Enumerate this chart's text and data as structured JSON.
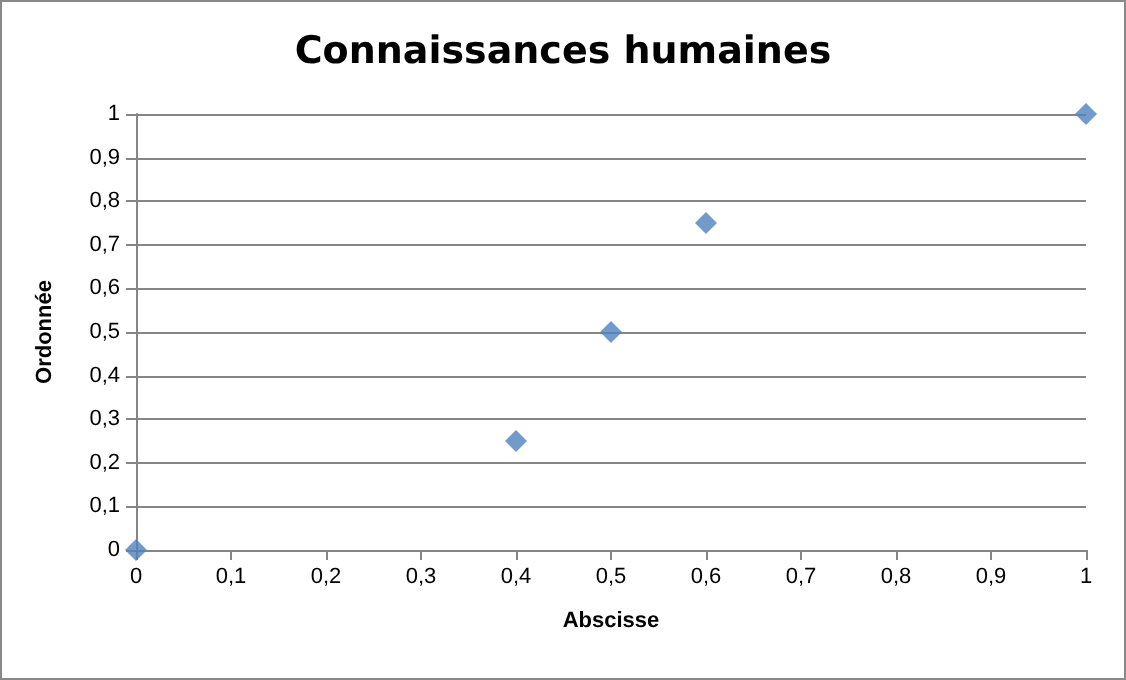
{
  "chart_data": {
    "type": "scatter",
    "title": "Connaissances humaines",
    "xlabel": "Abscisse",
    "ylabel": "Ordonnée",
    "x": [
      0,
      0.4,
      0.5,
      0.6,
      1
    ],
    "series": [
      {
        "color": "#4f81bd",
        "values": [
          0,
          0.25,
          0.5,
          0.75,
          1
        ]
      }
    ],
    "xlim": [
      0,
      1
    ],
    "ylim": [
      0,
      1
    ],
    "xticks": [
      0,
      {
        "value": 0.1,
        "label": "0,1"
      },
      {
        "value": 0.2,
        "label": "0,2"
      },
      {
        "value": 0.3,
        "label": "0,3"
      },
      {
        "value": 0.4,
        "label": "0,4"
      },
      {
        "value": 0.5,
        "label": "0,5"
      },
      {
        "value": 0.6,
        "label": "0,6"
      },
      {
        "value": 0.7,
        "label": "0,7"
      },
      {
        "value": 0.8,
        "label": "0,8"
      },
      {
        "value": 0.9,
        "label": "0,9"
      },
      1
    ],
    "yticks": [
      0,
      {
        "value": 0.1,
        "label": "0,1"
      },
      {
        "value": 0.2,
        "label": "0,2"
      },
      {
        "value": 0.3,
        "label": "0,3"
      },
      {
        "value": 0.4,
        "label": "0,4"
      },
      {
        "value": 0.5,
        "label": "0,5"
      },
      {
        "value": 0.6,
        "label": "0,6"
      },
      {
        "value": 0.7,
        "label": "0,7"
      },
      {
        "value": 0.8,
        "label": "0,8"
      },
      {
        "value": 0.9,
        "label": "0,9"
      },
      1
    ],
    "grid": "y",
    "marker": "diamond"
  }
}
